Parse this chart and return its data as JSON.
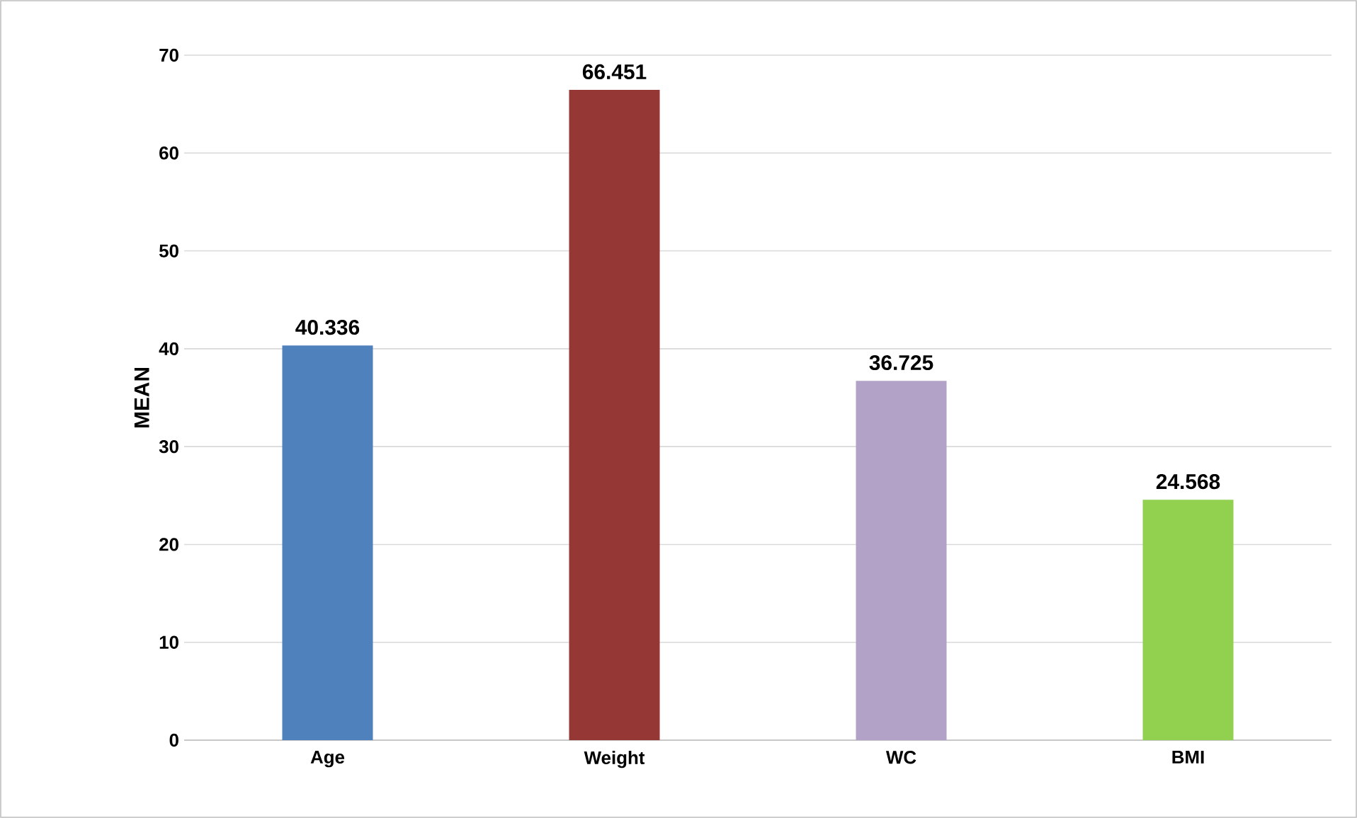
{
  "chart_data": {
    "type": "bar",
    "ylabel": "MEAN",
    "categories": [
      "Age",
      "Weight",
      "WC",
      "BMI"
    ],
    "values": [
      40.336,
      66.451,
      36.725,
      24.568
    ],
    "colors": [
      "#4f81bd",
      "#953735",
      "#b3a2c7",
      "#92d050"
    ],
    "ylim": [
      0,
      70
    ],
    "yticks": [
      0,
      10,
      20,
      30,
      40,
      50,
      60,
      70
    ],
    "grid": "y",
    "data_labels": true
  }
}
